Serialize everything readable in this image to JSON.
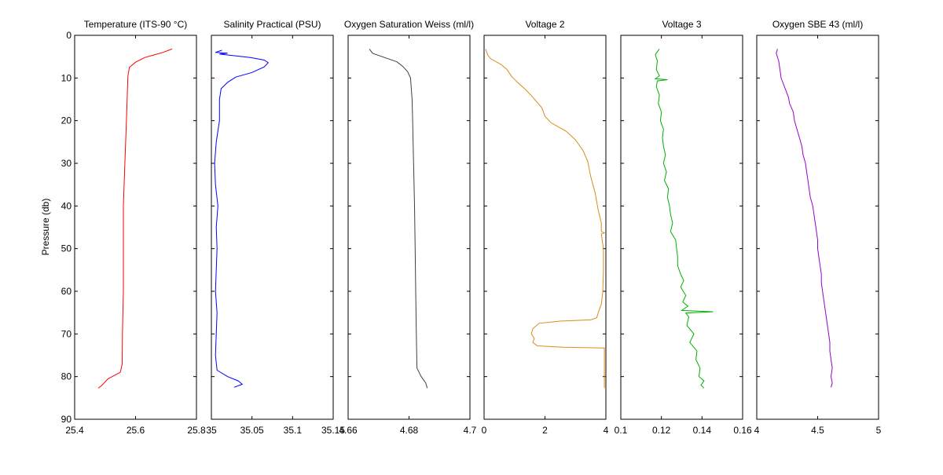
{
  "chart_data": {
    "type": "line",
    "ylabel": "Pressure (db)",
    "y_axis": {
      "range": [
        0,
        90
      ],
      "ticks": [
        0,
        10,
        20,
        30,
        40,
        50,
        60,
        70,
        80,
        90
      ],
      "reversed": true
    },
    "grid": false,
    "legend": "none",
    "panels": [
      {
        "title": "Temperature (ITS-90 °C)",
        "xlim": [
          25.4,
          25.8
        ],
        "xticks": [
          25.4,
          25.6,
          25.8
        ],
        "xtick_labels": [
          "25.4",
          "25.6",
          "25.8"
        ],
        "color": "#ff0000",
        "points": [
          [
            25.72,
            3.2
          ],
          [
            25.69,
            4.0
          ],
          [
            25.66,
            4.6
          ],
          [
            25.63,
            5.2
          ],
          [
            25.6,
            6.3
          ],
          [
            25.58,
            7.5
          ],
          [
            25.575,
            9.5
          ],
          [
            25.57,
            20
          ],
          [
            25.565,
            30
          ],
          [
            25.56,
            40
          ],
          [
            25.56,
            50
          ],
          [
            25.56,
            60
          ],
          [
            25.557,
            70
          ],
          [
            25.556,
            77
          ],
          [
            25.55,
            79
          ],
          [
            25.51,
            80.5
          ],
          [
            25.49,
            82
          ],
          [
            25.478,
            82.7
          ]
        ]
      },
      {
        "title": "Salinity Practical (PSU)",
        "xlim": [
          35,
          35.15
        ],
        "xticks": [
          35,
          35.05,
          35.1,
          35.15
        ],
        "xtick_labels": [
          "35",
          "35.05",
          "35.1",
          "35.15"
        ],
        "color": "#0000ff",
        "points": [
          [
            35.013,
            3.5
          ],
          [
            35.005,
            4.0
          ],
          [
            35.02,
            4.2
          ],
          [
            35.01,
            4.4
          ],
          [
            35.048,
            5.2
          ],
          [
            35.065,
            5.8
          ],
          [
            35.07,
            6.4
          ],
          [
            35.065,
            7.4
          ],
          [
            35.05,
            8.7
          ],
          [
            35.03,
            9.8
          ],
          [
            35.02,
            11
          ],
          [
            35.012,
            12.5
          ],
          [
            35.01,
            15
          ],
          [
            35.01,
            20
          ],
          [
            35.006,
            25
          ],
          [
            35.004,
            30
          ],
          [
            35.005,
            35
          ],
          [
            35.008,
            40
          ],
          [
            35.006,
            45
          ],
          [
            35.007,
            50
          ],
          [
            35.006,
            55
          ],
          [
            35.005,
            60
          ],
          [
            35.007,
            65
          ],
          [
            35.006,
            70
          ],
          [
            35.005,
            75
          ],
          [
            35.007,
            78.5
          ],
          [
            35.02,
            80
          ],
          [
            35.033,
            81
          ],
          [
            35.038,
            81.8
          ],
          [
            35.028,
            82.5
          ]
        ]
      },
      {
        "title": "Oxygen Saturation Weiss (ml/l)",
        "xlim": [
          4.66,
          4.7
        ],
        "xticks": [
          4.66,
          4.68,
          4.7
        ],
        "xtick_labels": [
          "4.66",
          "4.68",
          "4.7"
        ],
        "color": "#404040",
        "points": [
          [
            4.667,
            3.2
          ],
          [
            4.668,
            4.2
          ],
          [
            4.672,
            5.2
          ],
          [
            4.676,
            6.2
          ],
          [
            4.678,
            7.3
          ],
          [
            4.6795,
            8.5
          ],
          [
            4.6805,
            10
          ],
          [
            4.681,
            15
          ],
          [
            4.6812,
            20
          ],
          [
            4.6815,
            30
          ],
          [
            4.6818,
            40
          ],
          [
            4.682,
            50
          ],
          [
            4.6822,
            60
          ],
          [
            4.6824,
            70
          ],
          [
            4.6826,
            78
          ],
          [
            4.684,
            80
          ],
          [
            4.6855,
            81.5
          ],
          [
            4.686,
            82.7
          ]
        ]
      },
      {
        "title": "Voltage 2",
        "xlim": [
          0,
          4
        ],
        "xticks": [
          0,
          2,
          4
        ],
        "xtick_labels": [
          "0",
          "2",
          "4"
        ],
        "color": "#d98c1a",
        "points": [
          [
            0.05,
            3.2
          ],
          [
            0.12,
            4.6
          ],
          [
            0.22,
            5.5
          ],
          [
            0.55,
            6.8
          ],
          [
            0.75,
            8.0
          ],
          [
            0.9,
            9.6
          ],
          [
            1.1,
            11
          ],
          [
            1.4,
            13
          ],
          [
            1.6,
            14.5
          ],
          [
            1.9,
            17
          ],
          [
            2.0,
            19
          ],
          [
            2.2,
            20.5
          ],
          [
            2.7,
            22.5
          ],
          [
            3.0,
            24.5
          ],
          [
            3.25,
            27
          ],
          [
            3.4,
            29.5
          ],
          [
            3.5,
            33
          ],
          [
            3.65,
            37
          ],
          [
            3.75,
            41
          ],
          [
            3.85,
            44
          ],
          [
            3.85,
            46
          ],
          [
            3.95,
            46.3
          ],
          [
            3.85,
            46.6
          ],
          [
            3.92,
            50
          ],
          [
            3.92,
            55
          ],
          [
            3.9,
            60
          ],
          [
            3.85,
            63
          ],
          [
            3.75,
            65
          ],
          [
            3.7,
            66.2
          ],
          [
            3.5,
            66.7
          ],
          [
            2.5,
            67.0
          ],
          [
            1.8,
            67.5
          ],
          [
            1.6,
            68.8
          ],
          [
            1.55,
            70
          ],
          [
            1.65,
            71
          ],
          [
            1.6,
            72
          ],
          [
            1.75,
            72.8
          ],
          [
            2.6,
            73.1
          ],
          [
            3.95,
            73.3
          ],
          [
            3.95,
            82.7
          ]
        ]
      },
      {
        "title": "Voltage 3",
        "xlim": [
          0.1,
          0.16
        ],
        "xticks": [
          0.1,
          0.12,
          0.14,
          0.16
        ],
        "xtick_labels": [
          "0.1",
          "0.12",
          "0.14",
          "0.16"
        ],
        "color": "#00b000",
        "points": [
          [
            0.119,
            3.2
          ],
          [
            0.117,
            4.5
          ],
          [
            0.118,
            6
          ],
          [
            0.1175,
            8
          ],
          [
            0.119,
            9.5
          ],
          [
            0.117,
            10.2
          ],
          [
            0.123,
            10.4
          ],
          [
            0.118,
            10.7
          ],
          [
            0.1175,
            12
          ],
          [
            0.119,
            14
          ],
          [
            0.1185,
            16
          ],
          [
            0.12,
            18
          ],
          [
            0.1195,
            20
          ],
          [
            0.121,
            22
          ],
          [
            0.1205,
            24
          ],
          [
            0.121,
            26
          ],
          [
            0.122,
            28
          ],
          [
            0.121,
            30
          ],
          [
            0.1225,
            32
          ],
          [
            0.1215,
            34
          ],
          [
            0.1235,
            36
          ],
          [
            0.123,
            38
          ],
          [
            0.124,
            40
          ],
          [
            0.1245,
            42
          ],
          [
            0.1255,
            44
          ],
          [
            0.1245,
            46
          ],
          [
            0.127,
            48
          ],
          [
            0.1275,
            50
          ],
          [
            0.128,
            52
          ],
          [
            0.128,
            54
          ],
          [
            0.1295,
            56
          ],
          [
            0.131,
            57.5
          ],
          [
            0.1295,
            59
          ],
          [
            0.132,
            61
          ],
          [
            0.1305,
            62.5
          ],
          [
            0.133,
            63.5
          ],
          [
            0.13,
            64.5
          ],
          [
            0.1455,
            64.8
          ],
          [
            0.132,
            65.1
          ],
          [
            0.1335,
            66
          ],
          [
            0.1325,
            68
          ],
          [
            0.136,
            70
          ],
          [
            0.134,
            72
          ],
          [
            0.1375,
            74
          ],
          [
            0.137,
            76
          ],
          [
            0.139,
            78
          ],
          [
            0.1385,
            80
          ],
          [
            0.141,
            81
          ],
          [
            0.1395,
            82
          ],
          [
            0.141,
            82.7
          ]
        ]
      },
      {
        "title": "Oxygen SBE 43 (ml/l)",
        "xlim": [
          4,
          5
        ],
        "xticks": [
          4,
          4.5,
          5
        ],
        "xtick_labels": [
          "4",
          "4.5",
          "5"
        ],
        "color": "#9900cc",
        "points": [
          [
            4.17,
            3.2
          ],
          [
            4.16,
            4.2
          ],
          [
            4.18,
            6
          ],
          [
            4.19,
            8
          ],
          [
            4.2,
            10
          ],
          [
            4.22,
            11.5
          ],
          [
            4.24,
            13
          ],
          [
            4.26,
            14.5
          ],
          [
            4.27,
            16
          ],
          [
            4.3,
            18
          ],
          [
            4.31,
            20
          ],
          [
            4.33,
            22
          ],
          [
            4.35,
            24
          ],
          [
            4.37,
            26
          ],
          [
            4.38,
            28
          ],
          [
            4.4,
            30
          ],
          [
            4.41,
            32
          ],
          [
            4.42,
            34
          ],
          [
            4.43,
            36
          ],
          [
            4.44,
            38
          ],
          [
            4.46,
            40
          ],
          [
            4.47,
            42
          ],
          [
            4.48,
            44
          ],
          [
            4.49,
            46
          ],
          [
            4.5,
            48
          ],
          [
            4.5,
            50
          ],
          [
            4.51,
            52
          ],
          [
            4.52,
            54
          ],
          [
            4.53,
            56
          ],
          [
            4.53,
            58
          ],
          [
            4.54,
            60
          ],
          [
            4.55,
            62
          ],
          [
            4.56,
            64
          ],
          [
            4.57,
            66
          ],
          [
            4.58,
            68
          ],
          [
            4.59,
            70
          ],
          [
            4.6,
            72
          ],
          [
            4.6,
            74
          ],
          [
            4.61,
            76
          ],
          [
            4.62,
            78
          ],
          [
            4.61,
            80
          ],
          [
            4.62,
            81.5
          ],
          [
            4.61,
            82.5
          ]
        ]
      }
    ]
  }
}
